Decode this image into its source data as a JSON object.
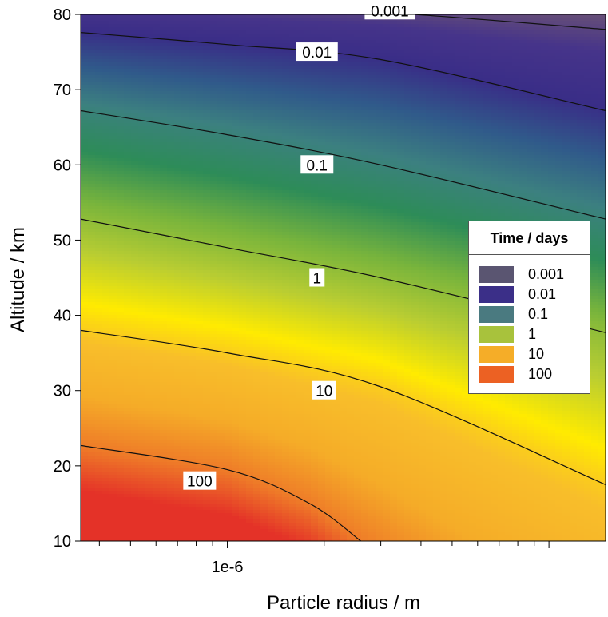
{
  "chart_data": {
    "type": "heatmap",
    "subtype": "filled-contour",
    "title": "",
    "xlabel": "Particle radius / m",
    "ylabel": "Altitude / km",
    "xscale": "log",
    "xlim": [
      3.5e-07,
      1.5e-05
    ],
    "ylim": [
      10,
      80
    ],
    "x_tick_labels": [
      {
        "value": 1e-06,
        "label": "1e-6"
      }
    ],
    "y_ticks": [
      10,
      20,
      30,
      40,
      50,
      60,
      70,
      80
    ],
    "colorbar_title": "Time / days",
    "levels": [
      {
        "label": "0.001",
        "value": 0.001,
        "color": "#5a5571"
      },
      {
        "label": "0.01",
        "value": 0.01,
        "color": "#3b2f88"
      },
      {
        "label": "0.1",
        "value": 0.1,
        "color": "#4a7a80"
      },
      {
        "label": "1",
        "value": 1,
        "color": "#a8c23c"
      },
      {
        "label": "10",
        "value": 10,
        "color": "#f5ad28"
      },
      {
        "label": "100",
        "value": 100,
        "color": "#ec6123"
      }
    ],
    "contours": [
      {
        "label": "0.001",
        "points": [
          [
            3.5e-07,
            82
          ],
          [
            1e-06,
            81
          ],
          [
            3e-06,
            80.3
          ],
          [
            1.5e-05,
            78
          ]
        ],
        "label_at": [
          3.2e-06,
          80.5
        ]
      },
      {
        "label": "0.01",
        "points": [
          [
            3.5e-07,
            77.6
          ],
          [
            1e-06,
            76
          ],
          [
            3e-06,
            74
          ],
          [
            1.5e-05,
            67.2
          ]
        ],
        "label_at": [
          1.9e-06,
          75
        ]
      },
      {
        "label": "0.1",
        "points": [
          [
            3.5e-07,
            67.2
          ],
          [
            1e-06,
            64
          ],
          [
            3e-06,
            60
          ],
          [
            1.5e-05,
            52.8
          ]
        ],
        "label_at": [
          1.9e-06,
          60
        ]
      },
      {
        "label": "1",
        "points": [
          [
            3.5e-07,
            52.8
          ],
          [
            1e-06,
            49
          ],
          [
            3e-06,
            45
          ],
          [
            1.5e-05,
            37.7
          ]
        ],
        "label_at": [
          1.9e-06,
          45
        ]
      },
      {
        "label": "10",
        "points": [
          [
            3.5e-07,
            38
          ],
          [
            1e-06,
            35
          ],
          [
            3e-06,
            30.5
          ],
          [
            1.5e-05,
            17.5
          ]
        ],
        "label_at": [
          2e-06,
          30
        ]
      },
      {
        "label": "100",
        "points": [
          [
            3.5e-07,
            22.7
          ],
          [
            1e-06,
            19.5
          ],
          [
            1.8e-06,
            15
          ],
          [
            2.6e-06,
            10
          ]
        ],
        "label_at": [
          8.2e-07,
          18
        ]
      }
    ],
    "grid": false,
    "legend_position": "right"
  }
}
